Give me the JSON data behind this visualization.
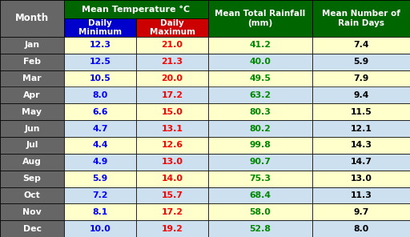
{
  "months": [
    "Jan",
    "Feb",
    "Mar",
    "Apr",
    "May",
    "Jun",
    "Jul",
    "Aug",
    "Sep",
    "Oct",
    "Nov",
    "Dec"
  ],
  "daily_min": [
    12.3,
    12.5,
    10.5,
    8.0,
    6.6,
    4.7,
    4.4,
    4.9,
    5.9,
    7.2,
    8.1,
    10.0
  ],
  "daily_max": [
    21.0,
    21.3,
    20.0,
    17.2,
    15.0,
    13.1,
    12.6,
    13.0,
    14.0,
    15.7,
    17.2,
    19.2
  ],
  "rainfall": [
    41.2,
    40.0,
    49.5,
    63.2,
    80.3,
    80.2,
    99.8,
    90.7,
    75.3,
    68.4,
    58.0,
    52.8
  ],
  "rain_days": [
    7.4,
    5.9,
    7.9,
    9.4,
    11.5,
    12.1,
    14.3,
    14.7,
    13.0,
    11.3,
    9.7,
    8.0
  ],
  "col_header_bg": "#006600",
  "col_header_text": "#ffffff",
  "min_header_bg": "#0000cc",
  "max_header_bg": "#cc0000",
  "sub_header_text": "#ffffff",
  "month_col_bg": "#666666",
  "month_col_text": "#ffffff",
  "row_bg_odd": "#ffffcc",
  "row_bg_even": "#cce0f0",
  "min_text_color": "#0000ff",
  "max_text_color": "#ff0000",
  "rain_text_color": "#008800",
  "rain_days_text_color": "#000000",
  "border_color": "#000000",
  "col3": "Mean Total Rainfall\n(mm)",
  "col4": "Mean Number of\nRain Days",
  "month_label": "Month",
  "temp_title": "Mean Temperature °C",
  "sub1": "Daily\nMinimum",
  "sub2": "Daily\nMaximum"
}
